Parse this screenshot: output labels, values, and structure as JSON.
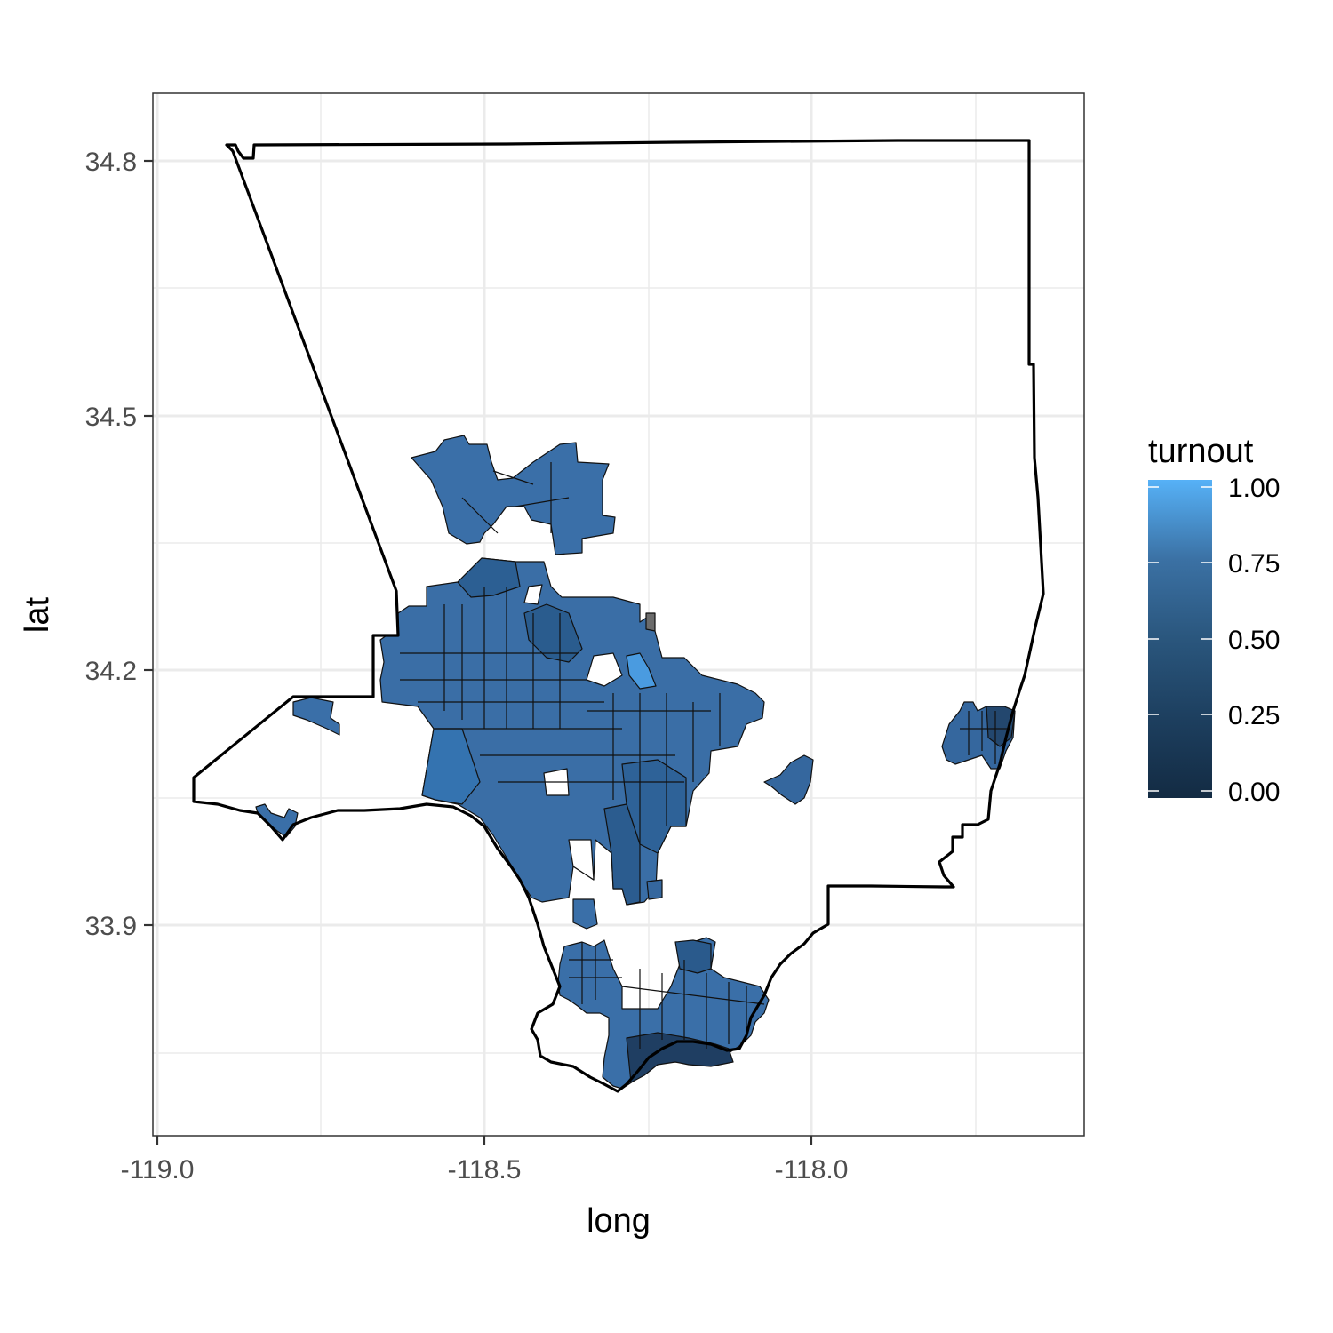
{
  "chart_data": {
    "type": "choropleth map",
    "xlabel": "long",
    "ylabel": "lat",
    "x_ticks": [
      "-119.0",
      "-118.5",
      "-118.0"
    ],
    "x_tick_values": [
      -119.0,
      -118.5,
      -118.0
    ],
    "y_ticks": [
      "34.8",
      "34.5",
      "34.2",
      "33.9"
    ],
    "y_tick_values": [
      34.8,
      34.5,
      34.2,
      33.9
    ],
    "xlim": [
      -119.01,
      -117.58
    ],
    "ylim": [
      33.66,
      34.88
    ],
    "grid": true,
    "legend": {
      "title": "turnout",
      "placement": "right",
      "labels": [
        "1.00",
        "0.75",
        "0.50",
        "0.25",
        "0.00"
      ],
      "values": [
        1.0,
        0.75,
        0.5,
        0.25,
        0.0
      ],
      "color_low": "#132B43",
      "color_high": "#56B1F7"
    },
    "fill_range": [
      0.0,
      1.0
    ]
  }
}
